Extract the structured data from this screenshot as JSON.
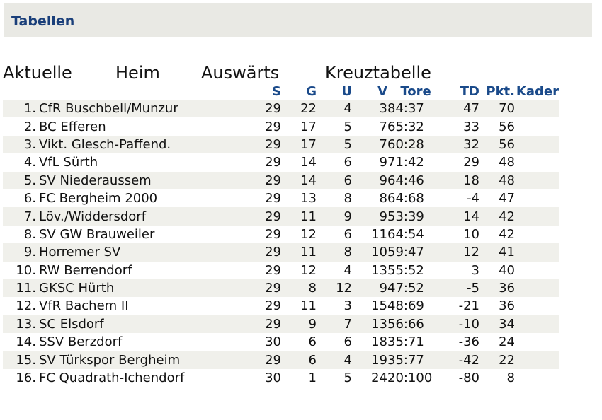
{
  "header": {
    "title": "Tabellen"
  },
  "tabs": [
    {
      "label": "Aktuelle"
    },
    {
      "label": "Heim"
    },
    {
      "label": "Auswärts"
    },
    {
      "label": "Kreuztabelle"
    }
  ],
  "table": {
    "columns": {
      "s": "S",
      "g": "G",
      "u": "U",
      "v": "V",
      "tore": "Tore",
      "td": "TD",
      "pkt": "Pkt.",
      "kader": "Kader"
    },
    "rows": [
      {
        "rank": "1.",
        "team": "CfR Buschbell/Munzur",
        "s": "29",
        "g": "22",
        "u": "4",
        "v": "3",
        "tore": "84:37",
        "td": "47",
        "pkt": "70"
      },
      {
        "rank": "2.",
        "team": "BC Efferen",
        "s": "29",
        "g": "17",
        "u": "5",
        "v": "7",
        "tore": "65:32",
        "td": "33",
        "pkt": "56"
      },
      {
        "rank": "3.",
        "team": "Vikt. Glesch-Paffend.",
        "s": "29",
        "g": "17",
        "u": "5",
        "v": "7",
        "tore": "60:28",
        "td": "32",
        "pkt": "56"
      },
      {
        "rank": "4.",
        "team": "VfL Sürth",
        "s": "29",
        "g": "14",
        "u": "6",
        "v": "9",
        "tore": "71:42",
        "td": "29",
        "pkt": "48"
      },
      {
        "rank": "5.",
        "team": "SV Niederaussem",
        "s": "29",
        "g": "14",
        "u": "6",
        "v": "9",
        "tore": "64:46",
        "td": "18",
        "pkt": "48"
      },
      {
        "rank": "6.",
        "team": "FC Bergheim 2000",
        "s": "29",
        "g": "13",
        "u": "8",
        "v": "8",
        "tore": "64:68",
        "td": "-4",
        "pkt": "47"
      },
      {
        "rank": "7.",
        "team": "Löv./Widdersdorf",
        "s": "29",
        "g": "11",
        "u": "9",
        "v": "9",
        "tore": "53:39",
        "td": "14",
        "pkt": "42"
      },
      {
        "rank": "8.",
        "team": "SV GW Brauweiler",
        "s": "29",
        "g": "12",
        "u": "6",
        "v": "11",
        "tore": "64:54",
        "td": "10",
        "pkt": "42"
      },
      {
        "rank": "9.",
        "team": "Horremer SV",
        "s": "29",
        "g": "11",
        "u": "8",
        "v": "10",
        "tore": "59:47",
        "td": "12",
        "pkt": "41"
      },
      {
        "rank": "10.",
        "team": "RW Berrendorf",
        "s": "29",
        "g": "12",
        "u": "4",
        "v": "13",
        "tore": "55:52",
        "td": "3",
        "pkt": "40"
      },
      {
        "rank": "11.",
        "team": "GKSC Hürth",
        "s": "29",
        "g": "8",
        "u": "12",
        "v": "9",
        "tore": "47:52",
        "td": "-5",
        "pkt": "36"
      },
      {
        "rank": "12.",
        "team": "VfR Bachem II",
        "s": "29",
        "g": "11",
        "u": "3",
        "v": "15",
        "tore": "48:69",
        "td": "-21",
        "pkt": "36"
      },
      {
        "rank": "13.",
        "team": "SC Elsdorf",
        "s": "29",
        "g": "9",
        "u": "7",
        "v": "13",
        "tore": "56:66",
        "td": "-10",
        "pkt": "34"
      },
      {
        "rank": "14.",
        "team": "SSV Berzdorf",
        "s": "30",
        "g": "6",
        "u": "6",
        "v": "18",
        "tore": "35:71",
        "td": "-36",
        "pkt": "24"
      },
      {
        "rank": "15.",
        "team": "SV Türkspor Bergheim",
        "s": "29",
        "g": "6",
        "u": "4",
        "v": "19",
        "tore": "35:77",
        "td": "-42",
        "pkt": "22"
      },
      {
        "rank": "16.",
        "team": "FC Quadrath-Ichendorf",
        "s": "30",
        "g": "1",
        "u": "5",
        "v": "24",
        "tore": "20:100",
        "td": "-80",
        "pkt": "8"
      }
    ]
  },
  "colors": {
    "header_bg": "#e9e9e4",
    "title": "#1a3f7a",
    "column_header": "#1a4a8a",
    "row_shade": "#f0f0eb"
  }
}
